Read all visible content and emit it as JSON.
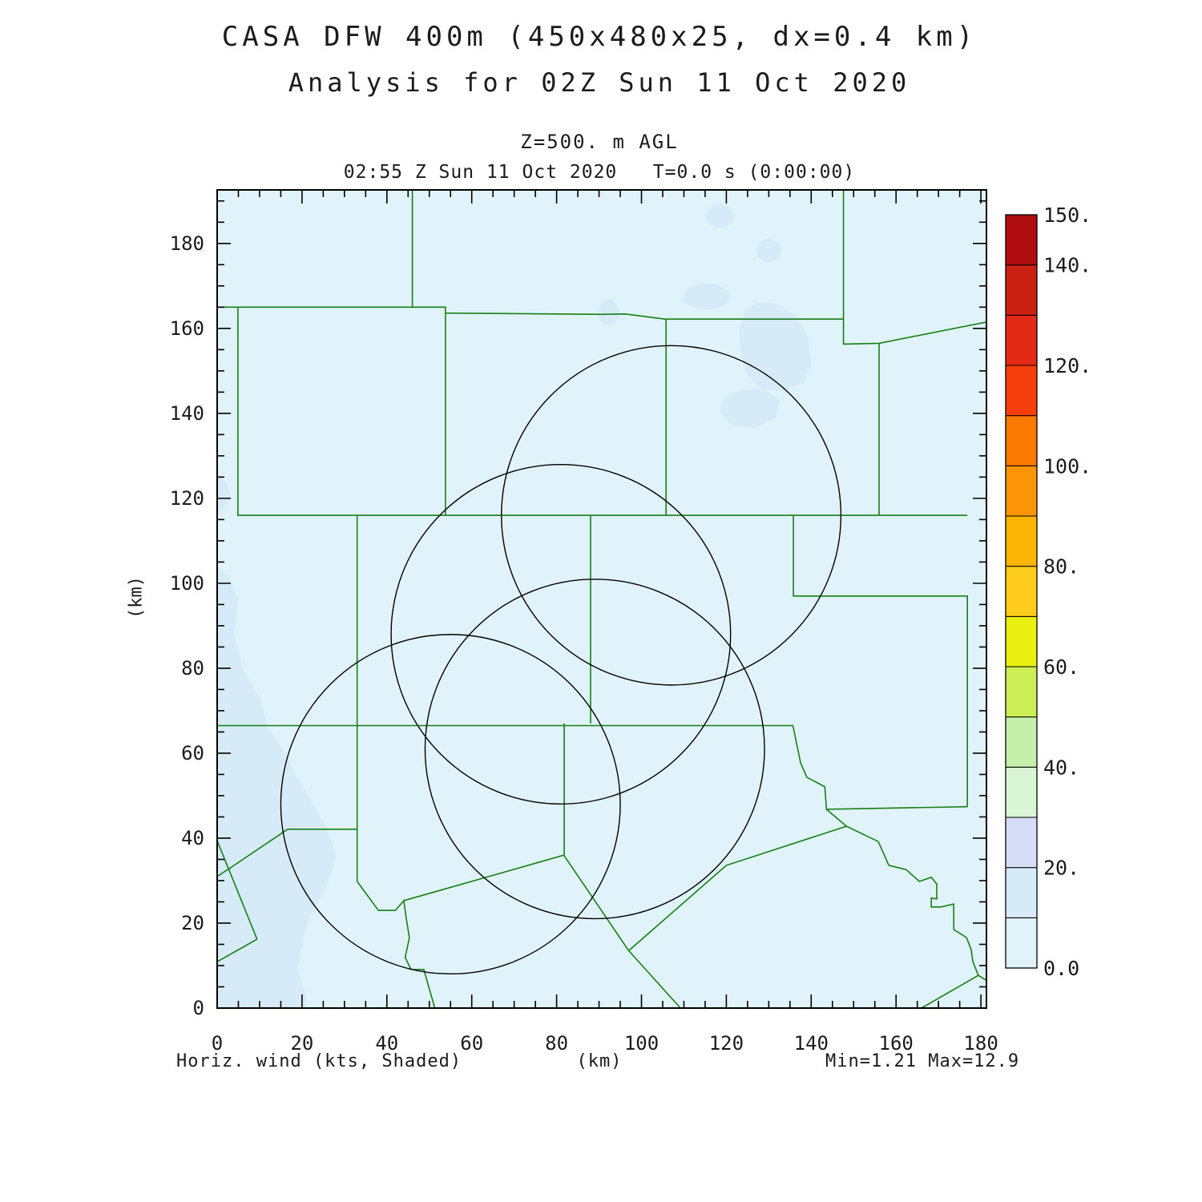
{
  "title_line1": "CASA DFW 400m (450x480x25, dx=0.4 km)",
  "title_line2": "Analysis for 02Z Sun 11 Oct 2020",
  "level_label": "Z=500. m AGL",
  "time_label": "02:55 Z Sun 11 Oct 2020   T=0.0 s (0:00:00)",
  "footer": {
    "left": "Horiz. wind (kts, Shaded)",
    "center": "(km)",
    "right": "Min=1.21 Max=12.9"
  },
  "axes": {
    "x_label": "(km)",
    "y_label": "(km)",
    "x_major_ticks": [
      0,
      20,
      40,
      60,
      80,
      100,
      120,
      140,
      160,
      180
    ],
    "y_major_ticks": [
      0,
      20,
      40,
      60,
      80,
      100,
      120,
      140,
      160,
      180
    ],
    "minor_tick_step": 5,
    "x_range": [
      0,
      181.3
    ],
    "y_range": [
      0,
      192.6
    ]
  },
  "chart_data": {
    "type": "heatmap",
    "title": "CASA DFW 400m (450x480x25, dx=0.4 km)",
    "subtitle": "Analysis for 02Z Sun 11 Oct 2020",
    "level": "Z=500. m AGL",
    "valid_time": "02:55 Z Sun 11 Oct 2020",
    "forecast_time": "T=0.0 s (0:00:00)",
    "field_label": "Horiz. wind (kts, Shaded)",
    "units": "kts",
    "min_value": 1.21,
    "max_value": 12.9,
    "xlabel": "(km)",
    "ylabel": "(km)",
    "xlim": [
      0,
      181.3
    ],
    "ylim": [
      0,
      192.6
    ],
    "grid": false,
    "colorbar": {
      "min": 0,
      "max": 150,
      "segment_step": 10,
      "segment_colors_bottom_to_top": [
        "#e1f3fa",
        "#d6eaf8",
        "#d4ddf5",
        "#d9f5d4",
        "#c3efaa",
        "#cdee55",
        "#e9ef0e",
        "#ffcc1c",
        "#fcb405",
        "#fc9505",
        "#fc7a00",
        "#f93e0e",
        "#e42a16",
        "#cd2015",
        "#b00e11"
      ],
      "tick_labels": [
        {
          "text": "0.0",
          "value": 0
        },
        {
          "text": "20.",
          "value": 20
        },
        {
          "text": "40.",
          "value": 40
        },
        {
          "text": "60.",
          "value": 60
        },
        {
          "text": "80.",
          "value": 80
        },
        {
          "text": "100.",
          "value": 100
        },
        {
          "text": "120.",
          "value": 120
        },
        {
          "text": "140.",
          "value": 140
        },
        {
          "text": "150.",
          "value": 150
        }
      ]
    },
    "background_shade": {
      "range_kts": "0-10",
      "color": "#e1f3fa"
    },
    "shade_10_20_color": "#d6eaf8",
    "shaded_regions_10_20_kts_polygons_km": [
      [
        [
          0,
          104
        ],
        [
          3,
          101
        ],
        [
          5,
          96
        ],
        [
          4,
          88
        ],
        [
          6,
          80
        ],
        [
          10,
          73
        ],
        [
          12,
          66
        ],
        [
          16,
          60
        ],
        [
          18,
          56
        ],
        [
          22,
          49
        ],
        [
          26,
          42
        ],
        [
          28,
          36
        ],
        [
          26,
          29
        ],
        [
          22,
          22
        ],
        [
          20,
          15
        ],
        [
          19,
          9
        ],
        [
          21,
          3
        ],
        [
          21,
          0
        ],
        [
          0,
          0
        ]
      ],
      [
        [
          0,
          126
        ],
        [
          2.5,
          123
        ],
        [
          3.2,
          120
        ],
        [
          1.5,
          117.5
        ],
        [
          0,
          117
        ]
      ],
      [
        [
          127,
          166.2
        ],
        [
          132,
          165.8
        ],
        [
          136.5,
          163
        ],
        [
          139.3,
          158
        ],
        [
          140,
          151
        ],
        [
          138,
          147
        ],
        [
          133.5,
          145.2
        ],
        [
          128,
          145.8
        ],
        [
          125,
          149
        ],
        [
          123.4,
          154
        ],
        [
          123,
          160
        ],
        [
          124.3,
          164
        ]
      ],
      [
        [
          119,
          143.2
        ],
        [
          123,
          145.6
        ],
        [
          129,
          145.6
        ],
        [
          132.6,
          143
        ],
        [
          131.8,
          139
        ],
        [
          126.5,
          136.6
        ],
        [
          121,
          137.4
        ],
        [
          118.6,
          140.2
        ]
      ]
    ],
    "shaded_regions_10_20_kts_ellipses_km": [
      {
        "cx": 118.5,
        "cy": 186.5,
        "rx": 3.2,
        "ry": 2.8
      },
      {
        "cx": 130,
        "cy": 178.3,
        "rx": 2.9,
        "ry": 2.7
      },
      {
        "cx": 115.4,
        "cy": 167.5,
        "rx": 5.6,
        "ry": 3.0
      },
      {
        "cx": 92.3,
        "cy": 163.8,
        "rx": 2.4,
        "ry": 3.0
      }
    ],
    "radar_range_circles_km": [
      {
        "cx": 107,
        "cy": 116,
        "r": 40
      },
      {
        "cx": 81,
        "cy": 88,
        "r": 40
      },
      {
        "cx": 89,
        "cy": 61,
        "r": 40
      },
      {
        "cx": 55,
        "cy": 48,
        "r": 40
      }
    ],
    "county_boundary_color": "#148014",
    "county_boundaries_km": [
      [
        [
          0,
          165
        ],
        [
          53.8,
          165
        ],
        [
          53.8,
          163.6
        ],
        [
          90.6,
          163.3
        ],
        [
          96.2,
          163.4
        ],
        [
          105.5,
          162.2
        ],
        [
          147.6,
          162.2
        ]
      ],
      [
        [
          46,
          192.6
        ],
        [
          46,
          165
        ]
      ],
      [
        [
          4.9,
          165
        ],
        [
          4.9,
          116
        ]
      ],
      [
        [
          53.8,
          163.6
        ],
        [
          53.8,
          116
        ]
      ],
      [
        [
          105.8,
          162.2
        ],
        [
          105.8,
          116
        ]
      ],
      [
        [
          147.6,
          192.6
        ],
        [
          147.6,
          156.3
        ],
        [
          156.0,
          156.5
        ],
        [
          181.3,
          161.5
        ]
      ],
      [
        [
          156.0,
          156.5
        ],
        [
          156.0,
          116
        ]
      ],
      [
        [
          4.7,
          116
        ],
        [
          176.8,
          116
        ]
      ],
      [
        [
          135.8,
          116
        ],
        [
          135.8,
          97
        ],
        [
          176.8,
          97
        ],
        [
          176.8,
          47.4
        ]
      ],
      [
        [
          88,
          116
        ],
        [
          88,
          67
        ]
      ],
      [
        [
          33,
          116
        ],
        [
          33,
          29.8
        ]
      ],
      [
        [
          0,
          66.5
        ],
        [
          135.7,
          66.5
        ],
        [
          137.5,
          57.7
        ],
        [
          139,
          54.3
        ],
        [
          143.2,
          52.1
        ],
        [
          143.6,
          46.8
        ],
        [
          176.8,
          47.4
        ]
      ],
      [
        [
          143.6,
          46.8
        ],
        [
          148.3,
          42.8
        ],
        [
          155.8,
          39.2
        ],
        [
          158.3,
          33.6
        ],
        [
          162.4,
          32.6
        ],
        [
          165.5,
          29.8
        ],
        [
          168.3,
          30.8
        ],
        [
          169.6,
          29.2
        ],
        [
          169.6,
          25.7
        ],
        [
          168.3,
          25.9
        ],
        [
          168.3,
          23.8
        ],
        [
          170.6,
          23.8
        ],
        [
          173.6,
          24.5
        ],
        [
          173.6,
          18.5
        ],
        [
          176.6,
          16.6
        ],
        [
          177.7,
          13.8
        ],
        [
          178.1,
          10.9
        ],
        [
          179.4,
          7.7
        ],
        [
          181.3,
          6.5
        ]
      ],
      [
        [
          179.4,
          7.7
        ],
        [
          166,
          0
        ]
      ],
      [
        [
          148.3,
          42.8
        ],
        [
          120,
          33.6
        ],
        [
          97,
          13.5
        ]
      ],
      [
        [
          97,
          13.5
        ],
        [
          109.2,
          0
        ]
      ],
      [
        [
          81.7,
          36
        ],
        [
          97,
          13.5
        ]
      ],
      [
        [
          81.8,
          67
        ],
        [
          81.8,
          36
        ]
      ],
      [
        [
          44,
          25.3
        ],
        [
          81.7,
          36
        ]
      ],
      [
        [
          33,
          29.8
        ],
        [
          38,
          23
        ],
        [
          42,
          23
        ],
        [
          44,
          25.3
        ],
        [
          44.5,
          21.5
        ],
        [
          45.3,
          16.6
        ],
        [
          44.3,
          11.9
        ],
        [
          45.7,
          9.1
        ],
        [
          48.7,
          9.1
        ],
        [
          51.3,
          0
        ]
      ],
      [
        [
          16.6,
          42.1
        ],
        [
          33,
          42.1
        ]
      ],
      [
        [
          16.6,
          42.1
        ],
        [
          3.4,
          33.2
        ],
        [
          0,
          31
        ]
      ],
      [
        [
          0,
          39.4
        ],
        [
          9.4,
          16.2
        ]
      ],
      [
        [
          9.4,
          16.2
        ],
        [
          0,
          10.9
        ]
      ]
    ]
  }
}
